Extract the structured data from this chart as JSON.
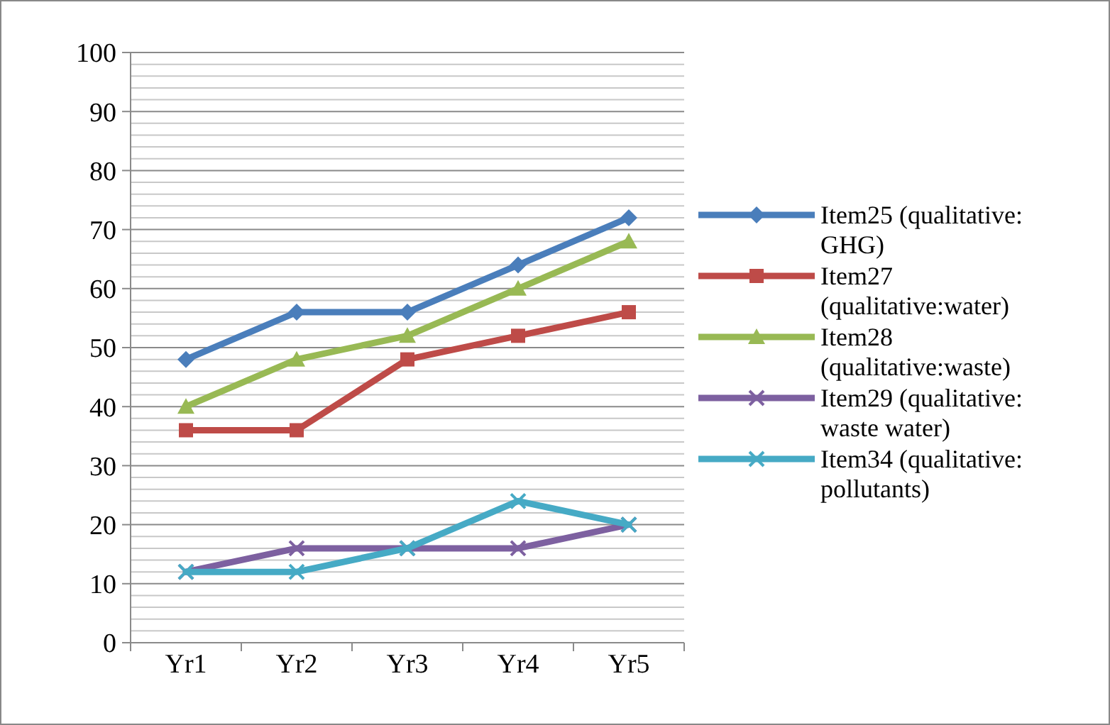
{
  "chart_data": {
    "type": "line",
    "categories": [
      "Yr1",
      "Yr2",
      "Yr3",
      "Yr4",
      "Yr5"
    ],
    "series": [
      {
        "name": "Item25 (qualitative: GHG)",
        "color": "#4a7ebb",
        "marker": "diamond",
        "values": [
          48,
          56,
          56,
          64,
          72
        ]
      },
      {
        "name": "Item27 (qualitative:water)",
        "color": "#be4b48",
        "marker": "square",
        "values": [
          36,
          36,
          48,
          52,
          56
        ]
      },
      {
        "name": "Item28 (qualitative:waste)",
        "color": "#98b954",
        "marker": "triangle",
        "values": [
          40,
          48,
          52,
          60,
          68
        ]
      },
      {
        "name": "Item29 (qualitative: waste water)",
        "color": "#7d60a0",
        "marker": "cross",
        "values": [
          12,
          16,
          16,
          16,
          20
        ]
      },
      {
        "name": "Item34 (qualitative: pollutants)",
        "color": "#46aac5",
        "marker": "cross",
        "values": [
          12,
          12,
          16,
          24,
          20
        ]
      }
    ],
    "ylim": [
      0,
      100
    ],
    "yticks": [
      0,
      {
        "value": 2,
        "label": null
      },
      {
        "value": 4,
        "label": null
      },
      {
        "value": 6,
        "label": null
      },
      {
        "value": 8,
        "label": null
      },
      10,
      {
        "value": 12,
        "label": null
      },
      {
        "value": 14,
        "label": null
      },
      {
        "value": 16,
        "label": null
      },
      {
        "value": 18,
        "label": null
      },
      20,
      {
        "value": 22,
        "label": null
      },
      {
        "value": 24,
        "label": null
      },
      {
        "value": 26,
        "label": null
      },
      {
        "value": 28,
        "label": null
      },
      30,
      {
        "value": 32,
        "label": null
      },
      {
        "value": 34,
        "label": null
      },
      {
        "value": 36,
        "label": null
      },
      {
        "value": 38,
        "label": null
      },
      40,
      {
        "value": 42,
        "label": null
      },
      {
        "value": 44,
        "label": null
      },
      {
        "value": 46,
        "label": null
      },
      {
        "value": 48,
        "label": null
      },
      50,
      {
        "value": 52,
        "label": null
      },
      {
        "value": 54,
        "label": null
      },
      {
        "value": 56,
        "label": null
      },
      {
        "value": 58,
        "label": null
      },
      60,
      {
        "value": 62,
        "label": null
      },
      {
        "value": 64,
        "label": null
      },
      {
        "value": 66,
        "label": null
      },
      {
        "value": 68,
        "label": null
      },
      70,
      {
        "value": 72,
        "label": null
      },
      {
        "value": 74,
        "label": null
      },
      {
        "value": 76,
        "label": null
      },
      {
        "value": 78,
        "label": null
      },
      80,
      {
        "value": 82,
        "label": null
      },
      {
        "value": 84,
        "label": null
      },
      {
        "value": 86,
        "label": null
      },
      {
        "value": 88,
        "label": null
      },
      90,
      {
        "value": 92,
        "label": null
      },
      {
        "value": 94,
        "label": null
      },
      {
        "value": 96,
        "label": null
      },
      {
        "value": 98,
        "label": null
      },
      100
    ],
    "grid": "y",
    "legend": "right",
    "line_style": "solid"
  }
}
